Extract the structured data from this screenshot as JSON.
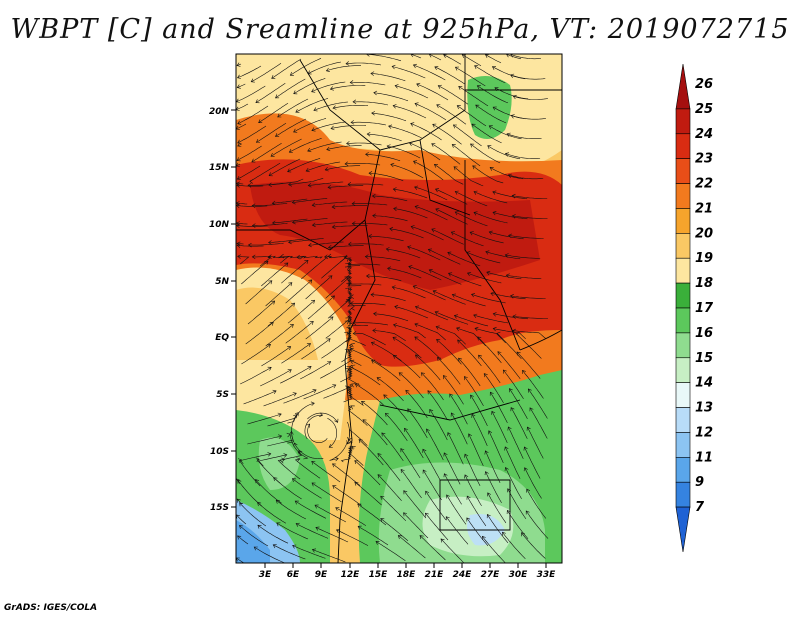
{
  "title": "WBPT [C] and Sreamline at 925hPa, VT: 2019072715",
  "credit": "GrADS: IGES/COLA",
  "lat_ticks": [
    "20N",
    "15N",
    "10N",
    "5N",
    "EQ",
    "5S",
    "10S",
    "15S"
  ],
  "lon_ticks": [
    "3E",
    "6E",
    "9E",
    "12E",
    "15E",
    "18E",
    "21E",
    "24E",
    "27E",
    "30E",
    "33E"
  ],
  "colorbar": {
    "labels": [
      "26",
      "25",
      "24",
      "23",
      "22",
      "21",
      "20",
      "19",
      "18",
      "17",
      "16",
      "15",
      "14",
      "13",
      "12",
      "11",
      "9",
      "7"
    ],
    "colors": [
      "#a50f0f",
      "#c01b10",
      "#d92c12",
      "#e94e18",
      "#f27a1e",
      "#f6a42c",
      "#fac864",
      "#fde6a0",
      "#3aaf3a",
      "#5cc85c",
      "#8fdc8f",
      "#c7efc4",
      "#e9f8f8",
      "#b8dcf8",
      "#8cc4f2",
      "#5aa6ea",
      "#3583e0",
      "#1f62d4"
    ]
  },
  "colors": {
    "warm_core": "#c8200f",
    "orange": "#f08a1e",
    "yellow": "#fdd88a",
    "green": "#5cc85c",
    "light_green": "#b8e6b0",
    "light_blue": "#bde0f5"
  }
}
